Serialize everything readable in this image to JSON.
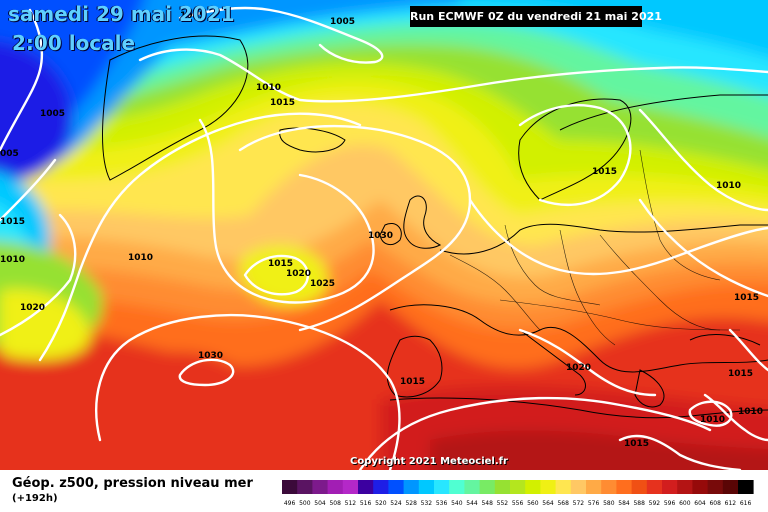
{
  "header": {
    "date": "samedi 29 mai 2021",
    "local_time": "2:00 locale",
    "run": "Run ECMWF 0Z du vendredi 21 mai 2021"
  },
  "footer": {
    "title": "Géop. z500, pression niveau mer",
    "lead_time": "(+192h)",
    "copyright": "Copyright 2021 Meteociel.fr"
  },
  "legend": {
    "values": [
      "496",
      "500",
      "504",
      "508",
      "512",
      "516",
      "520",
      "524",
      "528",
      "532",
      "536",
      "540",
      "544",
      "548",
      "552",
      "556",
      "560",
      "564",
      "568",
      "572",
      "576",
      "580",
      "584",
      "588",
      "592",
      "596",
      "600",
      "604",
      "608",
      "612",
      "616"
    ],
    "colors": [
      "#3b0a3a",
      "#5a1462",
      "#7d1a8c",
      "#a21eb4",
      "#b428c8",
      "#3c00a0",
      "#1e1ee6",
      "#0050ff",
      "#0096ff",
      "#00c8ff",
      "#28e6ff",
      "#50ffd2",
      "#64f5a0",
      "#78eb64",
      "#96e132",
      "#b4e61e",
      "#d2f000",
      "#f0f014",
      "#ffe650",
      "#ffc864",
      "#ffaa46",
      "#ff8c32",
      "#ff6e1e",
      "#f05014",
      "#e6321e",
      "#d21e1e",
      "#b41414",
      "#960a0a",
      "#780a0a",
      "#5a0505",
      "#000000"
    ]
  },
  "pressure_labels": [
    {
      "id": "1005-a",
      "text": "1005"
    },
    {
      "id": "1005-b",
      "text": "1005"
    },
    {
      "id": "1005-c",
      "text": "1005"
    },
    {
      "id": "1005-d",
      "text": "005"
    },
    {
      "id": "1010-a",
      "text": "1010"
    },
    {
      "id": "1015-a",
      "text": "1015"
    },
    {
      "id": "1015-b",
      "text": "1015"
    },
    {
      "id": "1010-b",
      "text": "1010"
    },
    {
      "id": "1010-c",
      "text": "1010"
    },
    {
      "id": "1020-a",
      "text": "1020"
    },
    {
      "id": "1030-a",
      "text": "1030"
    },
    {
      "id": "1015-c",
      "text": "1015"
    },
    {
      "id": "1020-b",
      "text": "1020"
    },
    {
      "id": "1025-a",
      "text": "1025"
    },
    {
      "id": "1030-b",
      "text": "1030"
    },
    {
      "id": "1015-d",
      "text": "1015"
    },
    {
      "id": "1020-c",
      "text": "1020"
    },
    {
      "id": "1015-e",
      "text": "1015"
    },
    {
      "id": "1015-f",
      "text": "1015"
    },
    {
      "id": "1010-d",
      "text": "1010"
    },
    {
      "id": "1010-e",
      "text": "1010"
    },
    {
      "id": "1010-f",
      "text": "1010"
    },
    {
      "id": "1015-g",
      "text": "1015"
    },
    {
      "id": "1015-h",
      "text": "1015"
    }
  ]
}
